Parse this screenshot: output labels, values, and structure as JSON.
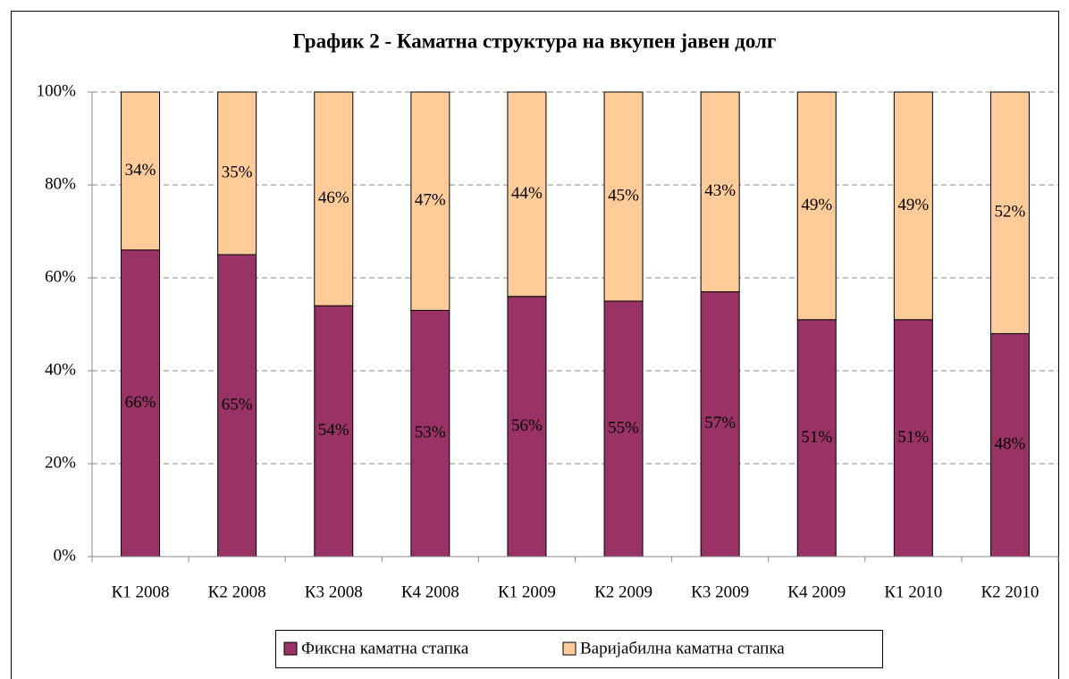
{
  "chart_data": {
    "type": "stacked_bar",
    "title": "График 2 - Каматна структура на вкупен јавен долг",
    "categories": [
      "К1 2008",
      "К2 2008",
      "К3 2008",
      "К4 2008",
      "К1 2009",
      "К2 2009",
      "К3 2009",
      "К4 2009",
      "К1 2010",
      "К2 2010"
    ],
    "series": [
      {
        "name": "Фиксна каматна стапка",
        "color": "#993366",
        "values": [
          66,
          65,
          54,
          53,
          56,
          55,
          57,
          51,
          51,
          48
        ],
        "value_labels": [
          "66%",
          "65%",
          "54%",
          "53%",
          "56%",
          "55%",
          "57%",
          "51%",
          "51%",
          "48%"
        ]
      },
      {
        "name": "Варијабилна каматна стапка",
        "color": "#ffcc99",
        "values": [
          34,
          35,
          46,
          47,
          44,
          45,
          43,
          49,
          49,
          52
        ],
        "value_labels": [
          "34%",
          "35%",
          "46%",
          "47%",
          "44%",
          "45%",
          "43%",
          "49%",
          "49%",
          "52%"
        ]
      }
    ],
    "ylim": [
      0,
      100
    ],
    "yticks": [
      {
        "value": 0,
        "label": "0%"
      },
      {
        "value": 20,
        "label": "20%"
      },
      {
        "value": 40,
        "label": "40%"
      },
      {
        "value": 60,
        "label": "60%"
      },
      {
        "value": 80,
        "label": "80%"
      },
      {
        "value": 100,
        "label": "100%"
      }
    ],
    "grid": true,
    "legend": "bottom"
  }
}
